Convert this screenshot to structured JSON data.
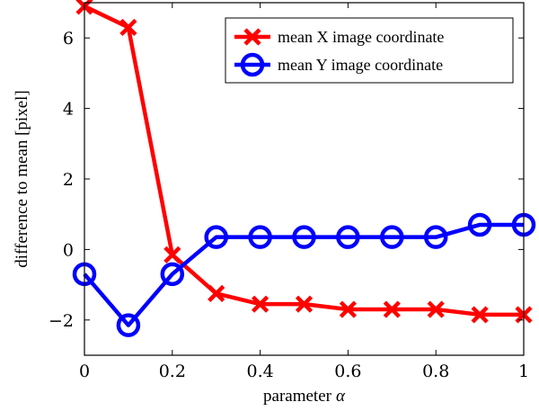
{
  "chart_data": {
    "type": "line",
    "xlabel": "parameter",
    "xlabel_symbol": "α",
    "ylabel": "difference to mean [pixel]",
    "xlim": [
      0,
      1
    ],
    "ylim": [
      -3,
      7
    ],
    "x_ticks": [
      0,
      0.2,
      0.4,
      0.6,
      0.8,
      1
    ],
    "x_tick_labels": [
      "0",
      "0.2",
      "0.4",
      "0.6",
      "0.8",
      "1"
    ],
    "y_ticks": [
      -2,
      0,
      2,
      4,
      6
    ],
    "y_tick_labels": [
      "−2",
      "0",
      "2",
      "4",
      "6"
    ],
    "grid": false,
    "legend_position": "top-right",
    "x": [
      0,
      0.1,
      0.2,
      0.3,
      0.4,
      0.5,
      0.6,
      0.7,
      0.8,
      0.9,
      1.0
    ],
    "series": [
      {
        "name": "mean X image coordinate",
        "color": "#ff0000",
        "marker": "x",
        "values": [
          6.9,
          6.3,
          -0.15,
          -1.25,
          -1.55,
          -1.55,
          -1.7,
          -1.7,
          -1.7,
          -1.85,
          -1.85
        ]
      },
      {
        "name": "mean Y image coordinate",
        "color": "#0000ff",
        "marker": "circle",
        "values": [
          -0.7,
          -2.15,
          -0.7,
          0.35,
          0.35,
          0.35,
          0.35,
          0.35,
          0.35,
          0.7,
          0.7
        ]
      }
    ]
  }
}
